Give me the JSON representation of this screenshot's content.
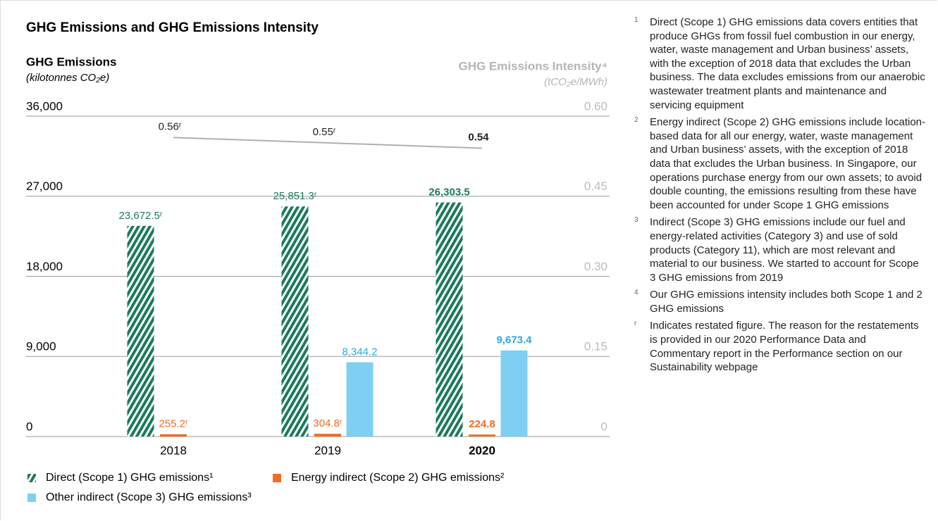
{
  "chart_data": {
    "type": "bar",
    "title": "GHG Emissions and GHG Emissions Intensity",
    "y_label": "GHG Emissions",
    "y_unit": "(kilotonnes CO₂e)",
    "y2_label": "GHG Emissions Intensity⁴",
    "y2_unit": "(tCO₂e/MWh)",
    "categories": [
      "2018",
      "2019",
      "2020"
    ],
    "series": [
      {
        "name": "Direct (Scope 1) GHG emissions¹",
        "color": "#1b7a5c",
        "hatch": true,
        "values": [
          23672.5,
          25851.3,
          26303.5
        ],
        "value_labels": [
          "23,672.5ʳ",
          "25,851.3ʳ",
          "26,303.5"
        ]
      },
      {
        "name": "Energy indirect (Scope 2) GHG emissions²",
        "color": "#f26b21",
        "values": [
          255.2,
          304.8,
          224.8
        ],
        "value_labels": [
          "255.2ʳ",
          "304.8ʳ",
          "224.8"
        ]
      },
      {
        "name": "Other indirect (Scope 3) GHG emissions³",
        "color": "#7fcff2",
        "label_color": "#2aa8e0",
        "values": [
          null,
          8344.2,
          9673.4
        ],
        "value_labels": [
          null,
          "8,344.2",
          "9,673.4"
        ]
      },
      {
        "type": "line",
        "axis": "y2",
        "color": "#b0b0b0",
        "values": [
          0.56,
          0.55,
          0.54
        ],
        "value_labels": [
          "0.56ʳ",
          "0.55ʳ",
          "0.54"
        ]
      }
    ],
    "ylim": [
      0,
      36000
    ],
    "yticks": [
      0,
      {
        "value": 9000,
        "label": "9,000"
      },
      {
        "value": 18000,
        "label": "18,000"
      },
      {
        "value": 27000,
        "label": "27,000"
      },
      {
        "value": 36000,
        "label": "36,000"
      }
    ],
    "y2lim": [
      0,
      0.6
    ],
    "y2ticks": [
      0,
      0.15,
      {
        "value": 0.3,
        "label": "0.30"
      },
      0.45,
      {
        "value": 0.6,
        "label": "0.60"
      }
    ],
    "grid": true
  },
  "footnotes": [
    {
      "marker": "1",
      "text": "Direct (Scope 1) GHG emissions data covers entities that produce GHGs from fossil fuel combustion in our energy, water, waste management and Urban business’ assets, with the exception of 2018 data that excludes the Urban business. The data excludes emissions from our anaerobic wastewater treatment plants and maintenance and servicing equipment"
    },
    {
      "marker": "2",
      "text": "Energy indirect (Scope 2) GHG emissions include location-based data for all our energy, water, waste management and Urban business’ assets, with the exception of 2018 data that excludes the Urban business. In Singapore, our operations purchase energy from our own assets; to avoid double counting, the emissions resulting from these have been accounted for under Scope 1 GHG emissions"
    },
    {
      "marker": "3",
      "text": "Indirect (Scope 3) GHG emissions include our fuel and energy-related activities (Category 3) and use of sold products (Category 11), which are most relevant and material to our business. We started to account for Scope 3 GHG emissions from 2019"
    },
    {
      "marker": "4",
      "text": "Our GHG emissions intensity includes both Scope 1 and 2 GHG emissions"
    },
    {
      "marker": "r",
      "text": "Indicates restated figure. The reason for the restatements is provided in our 2020 Performance Data and Commentary report in the Performance section on our Sustainability webpage"
    }
  ]
}
